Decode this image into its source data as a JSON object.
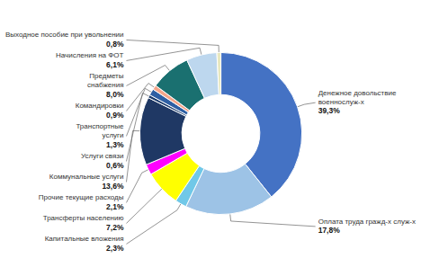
{
  "chart_data": {
    "type": "donut",
    "categories": [
      "Денежное довольствие\nвоеннослуж-х",
      "Оплата труда гражд-х служ-х",
      "Капитальные вложения",
      "Трансферты населению",
      "Прочие текущие расходы",
      "Коммунальные услуги",
      "Услуги связи",
      "Транспортные\nуслуги",
      "Командировки",
      "Предметы\nснабжения",
      "Начисления на ФОТ",
      "Выходное пособие при увольнении"
    ],
    "values": [
      39.3,
      17.8,
      2.3,
      7.2,
      2.1,
      13.6,
      0.6,
      1.3,
      0.9,
      8.0,
      6.1,
      0.8
    ],
    "value_labels": [
      "39,3%",
      "17,8%",
      "2,3%",
      "7,2%",
      "2,1%",
      "13,6%",
      "0,6%",
      "1,3%",
      "0,9%",
      "8,0%",
      "6,1%",
      "0,8%"
    ],
    "colors": [
      "#4472C4",
      "#9DC3E6",
      "#70C8E8",
      "#FFFF00",
      "#FF00FF",
      "#1F3864",
      "#1A3A6B",
      "#2E5FA3",
      "#F4A58A",
      "#1A7070",
      "#BDD7EE",
      "#E8E8C0"
    ],
    "data_labels": true
  }
}
